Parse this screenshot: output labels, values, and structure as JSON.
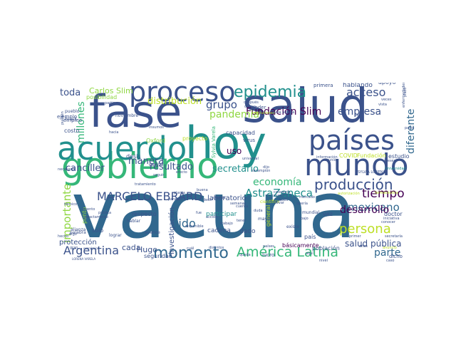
{
  "palette": {
    "dark_purple": "#440154",
    "indigo": "#3b528b",
    "blue": "#31688e",
    "teal": "#21908d",
    "green": "#35b779",
    "lime": "#90d743",
    "yellow": "#bddf26"
  },
  "words": [
    {
      "text": "vacuna",
      "color": "#31688e"
    },
    {
      "text": "fase",
      "color": "#3b528b"
    },
    {
      "text": "salud",
      "color": "#3b528b"
    },
    {
      "text": "hoy",
      "color": "#21908d"
    },
    {
      "text": "gobierno",
      "color": "#35b779"
    },
    {
      "text": "acuerdo",
      "color": "#21908d"
    },
    {
      "text": "proceso",
      "color": "#3b528b"
    },
    {
      "text": "mundo",
      "color": "#3b528b"
    },
    {
      "text": "países",
      "color": "#3b528b"
    },
    {
      "text": "epidemia",
      "color": "#21908d"
    },
    {
      "text": "América Latina",
      "color": "#35b779"
    },
    {
      "text": "momento",
      "color": "#31688e"
    },
    {
      "text": "Argentina",
      "color": "#3b528b"
    },
    {
      "text": "producción",
      "color": "#3b528b"
    },
    {
      "text": "persona",
      "color": "#bddf26"
    },
    {
      "text": "acceso",
      "color": "#3b528b"
    },
    {
      "text": "tiempo",
      "color": "#440154"
    },
    {
      "text": "mexicano",
      "color": "#31688e"
    },
    {
      "text": "AstraZeneca",
      "color": "#21908d"
    },
    {
      "text": "economía",
      "color": "#35b779"
    },
    {
      "text": "MARCELO EBRARD",
      "color": "#3b528b"
    },
    {
      "text": "Fundación Slim",
      "color": "#440154"
    },
    {
      "text": "pandemia",
      "color": "#90d743"
    },
    {
      "text": "grupo",
      "color": "#3b528b"
    },
    {
      "text": "distribución",
      "color": "#bddf26"
    },
    {
      "text": "importante",
      "color": "#90d743"
    },
    {
      "text": "millones",
      "color": "#35b779"
    },
    {
      "text": "desarrollo",
      "color": "#440154"
    },
    {
      "text": "resultado",
      "color": "#3b528b"
    },
    {
      "text": "canciller",
      "color": "#3b528b"
    },
    {
      "text": "secretario",
      "color": "#21908d"
    },
    {
      "text": "empresa",
      "color": "#3b528b"
    },
    {
      "text": "sido",
      "color": "#31688e"
    },
    {
      "text": "parte",
      "color": "#31688e"
    },
    {
      "text": "salud pública",
      "color": "#3b528b"
    },
    {
      "text": "diferente",
      "color": "#31688e"
    },
    {
      "text": "manera",
      "color": "#3b528b"
    },
    {
      "text": "toda",
      "color": "#3b528b"
    },
    {
      "text": "Carlos Slim",
      "color": "#90d743"
    },
    {
      "text": "laboratorio",
      "color": "#3b528b"
    },
    {
      "text": "uso",
      "color": "#440154"
    },
    {
      "text": "Hugo",
      "color": "#3b528b"
    },
    {
      "text": "cada",
      "color": "#3b528b"
    },
    {
      "text": "investigación",
      "color": "#3b528b"
    },
    {
      "text": "protección",
      "color": "#3b528b"
    },
    {
      "text": "posibilidad",
      "color": "#90d743"
    },
    {
      "text": "hablando",
      "color": "#3b528b"
    },
    {
      "text": "apoyo",
      "color": "#3b528b"
    },
    {
      "text": "EBRARD CASAUBÓN",
      "color": "#440154"
    },
    {
      "text": "Oxford",
      "color": "#90d743"
    },
    {
      "text": "proyecto",
      "color": "#bddf26"
    },
    {
      "text": "capacidad",
      "color": "#3b528b"
    },
    {
      "text": "dosis",
      "color": "#3b528b"
    },
    {
      "text": "respecto",
      "color": "#3b528b"
    },
    {
      "text": "participar",
      "color": "#21908d"
    },
    {
      "text": "cadena",
      "color": "#3b528b"
    },
    {
      "text": "dado",
      "color": "#3b528b"
    },
    {
      "text": "país",
      "color": "#3b528b"
    },
    {
      "text": "población",
      "color": "#3b528b"
    },
    {
      "text": "doctor",
      "color": "#3b528b"
    },
    {
      "text": "básicamente",
      "color": "#440154"
    },
    {
      "text": "seguridad",
      "color": "#3b528b"
    },
    {
      "text": "COVID",
      "color": "#bddf26"
    },
    {
      "text": "Fundación",
      "color": "#bddf26"
    },
    {
      "text": "estudio",
      "color": "#3b528b"
    },
    {
      "text": "costo",
      "color": "#3b528b"
    },
    {
      "text": "empleo",
      "color": "#3b528b"
    },
    {
      "text": "ejemplo",
      "color": "#3b528b"
    },
    {
      "text": "solo",
      "color": "#3b528b"
    },
    {
      "text": "punto",
      "color": "#90d743"
    },
    {
      "text": "dicho",
      "color": "#3b528b"
    },
    {
      "text": "vez",
      "color": "#3b528b"
    },
    {
      "text": "general",
      "color": "#bddf26"
    },
    {
      "text": "primera",
      "color": "#3b528b"
    },
    {
      "text": "gente",
      "color": "#3b528b"
    },
    {
      "text": "lucro",
      "color": "#3b528b"
    },
    {
      "text": "poder",
      "color": "#3b528b"
    },
    {
      "text": "virus",
      "color": "#3b528b"
    },
    {
      "text": "Sylvia Varela",
      "color": "#35b779"
    },
    {
      "text": "mayor",
      "color": "#3b528b"
    },
    {
      "text": "mundial",
      "color": "#3b528b"
    },
    {
      "text": "existe",
      "color": "#3b528b"
    },
    {
      "text": "hablar",
      "color": "#3b528b"
    },
    {
      "text": "palabra",
      "color": "#3b528b"
    },
    {
      "text": "alianza",
      "color": "#3b528b"
    },
    {
      "text": "lograr",
      "color": "#3b528b"
    },
    {
      "text": "avance",
      "color": "#3b528b"
    },
    {
      "text": "noviembre",
      "color": "#3b528b"
    },
    {
      "text": "pueblo",
      "color": "#3b528b"
    },
    {
      "text": "Brasil",
      "color": "#3b528b"
    },
    {
      "text": "base",
      "color": "#3b528b"
    },
    {
      "text": "manufactura",
      "color": "#3b528b"
    },
    {
      "text": "esfuerzo",
      "color": "#3b528b"
    },
    {
      "text": "después",
      "color": "#3b528b"
    },
    {
      "text": "clínica",
      "color": "#3b528b"
    },
    {
      "text": "instituciones",
      "color": "#bddf26"
    },
    {
      "text": "insumos",
      "color": "#3b528b"
    },
    {
      "text": "hacia",
      "color": "#3b528b"
    },
    {
      "text": "seguir",
      "color": "#3b528b"
    },
    {
      "text": "interés",
      "color": "#3b528b"
    },
    {
      "text": "universal",
      "color": "#3b528b"
    },
    {
      "text": "científico",
      "color": "#bddf26"
    },
    {
      "text": "sarampión",
      "color": "#3b528b"
    },
    {
      "text": "dijo",
      "color": "#3b528b"
    },
    {
      "text": "duda",
      "color": "#3b528b"
    },
    {
      "text": "información",
      "color": "#3b528b"
    },
    {
      "text": "reunión",
      "color": "#3b528b"
    },
    {
      "text": "meses",
      "color": "#3b528b"
    },
    {
      "text": "Universidad",
      "color": "#21908d"
    },
    {
      "text": "SYLVIA LORENA",
      "color": "#3b528b"
    },
    {
      "text": "autorización",
      "color": "#bddf26"
    },
    {
      "text": "farmacéutica",
      "color": "#bddf26"
    },
    {
      "text": "iniciativa",
      "color": "#3b528b"
    },
    {
      "text": "primer",
      "color": "#3b528b"
    },
    {
      "text": "años",
      "color": "#3b528b"
    },
    {
      "text": "secretaría",
      "color": "#3b528b"
    },
    {
      "text": "colaboración",
      "color": "#3b528b"
    },
    {
      "text": "enfermedades infecciosas",
      "color": "#3b528b"
    },
    {
      "text": "vista",
      "color": "#3b528b"
    },
    {
      "text": "bien",
      "color": "#3b528b"
    },
    {
      "text": "veces",
      "color": "#3b528b"
    },
    {
      "text": "plazo",
      "color": "#3b528b"
    },
    {
      "text": "parte",
      "color": "#3b528b"
    },
    {
      "text": "LORENA VARELA",
      "color": "#3b528b"
    },
    {
      "text": "económica",
      "color": "#3b528b"
    },
    {
      "text": "paralelo",
      "color": "#3b528b"
    },
    {
      "text": "gran",
      "color": "#3b528b"
    },
    {
      "text": "cuál",
      "color": "#3b528b"
    },
    {
      "text": "ciencia",
      "color": "#3b528b"
    },
    {
      "text": "técnico",
      "color": "#3b528b"
    },
    {
      "text": "hecho",
      "color": "#3b528b"
    },
    {
      "text": "digo",
      "color": "#3b528b"
    },
    {
      "text": "evento",
      "color": "#3b528b"
    },
    {
      "text": "partir",
      "color": "#3b528b"
    },
    {
      "text": "exactamente",
      "color": "#3b528b"
    },
    {
      "text": "planta",
      "color": "#3b528b"
    },
    {
      "text": "acción",
      "color": "#3b528b"
    },
    {
      "text": "bajo",
      "color": "#3b528b"
    },
    {
      "text": "tener",
      "color": "#3b528b"
    },
    {
      "text": "semanas",
      "color": "#3b528b"
    },
    {
      "text": "necesario",
      "color": "#3b528b"
    },
    {
      "text": "efecto",
      "color": "#3b528b"
    },
    {
      "text": "tratamiento",
      "color": "#3b528b"
    },
    {
      "text": "pueden",
      "color": "#3b528b"
    },
    {
      "text": "necesaria",
      "color": "#3b528b"
    },
    {
      "text": "disponible",
      "color": "#3b528b"
    },
    {
      "text": "cuenta",
      "color": "#3b528b"
    },
    {
      "text": "distintos",
      "color": "#3b528b"
    },
    {
      "text": "categoría",
      "color": "#3b528b"
    },
    {
      "text": "buena",
      "color": "#3b528b"
    },
    {
      "text": "quería",
      "color": "#3b528b"
    },
    {
      "text": "vacuna",
      "color": "#bddf26"
    },
    {
      "text": "mercado",
      "color": "#3b528b"
    },
    {
      "text": "llevar",
      "color": "#3b528b"
    },
    {
      "text": "fases",
      "color": "#3b528b"
    },
    {
      "text": "decir",
      "color": "#3b528b"
    },
    {
      "text": "fue",
      "color": "#3b528b"
    },
    {
      "text": "trabajo",
      "color": "#3b528b"
    },
    {
      "text": "queda",
      "color": "#3b528b"
    },
    {
      "text": "aquí",
      "color": "#3b528b"
    },
    {
      "text": "anuncio",
      "color": "#bddf26"
    },
    {
      "text": "nivel",
      "color": "#3b528b"
    },
    {
      "text": "pública",
      "color": "#3b528b"
    },
    {
      "text": "duda alguna",
      "color": "#3b528b"
    },
    {
      "text": "países",
      "color": "#3b528b"
    },
    {
      "text": "conocer",
      "color": "#3b528b"
    },
    {
      "text": "caso",
      "color": "#3b528b"
    }
  ]
}
